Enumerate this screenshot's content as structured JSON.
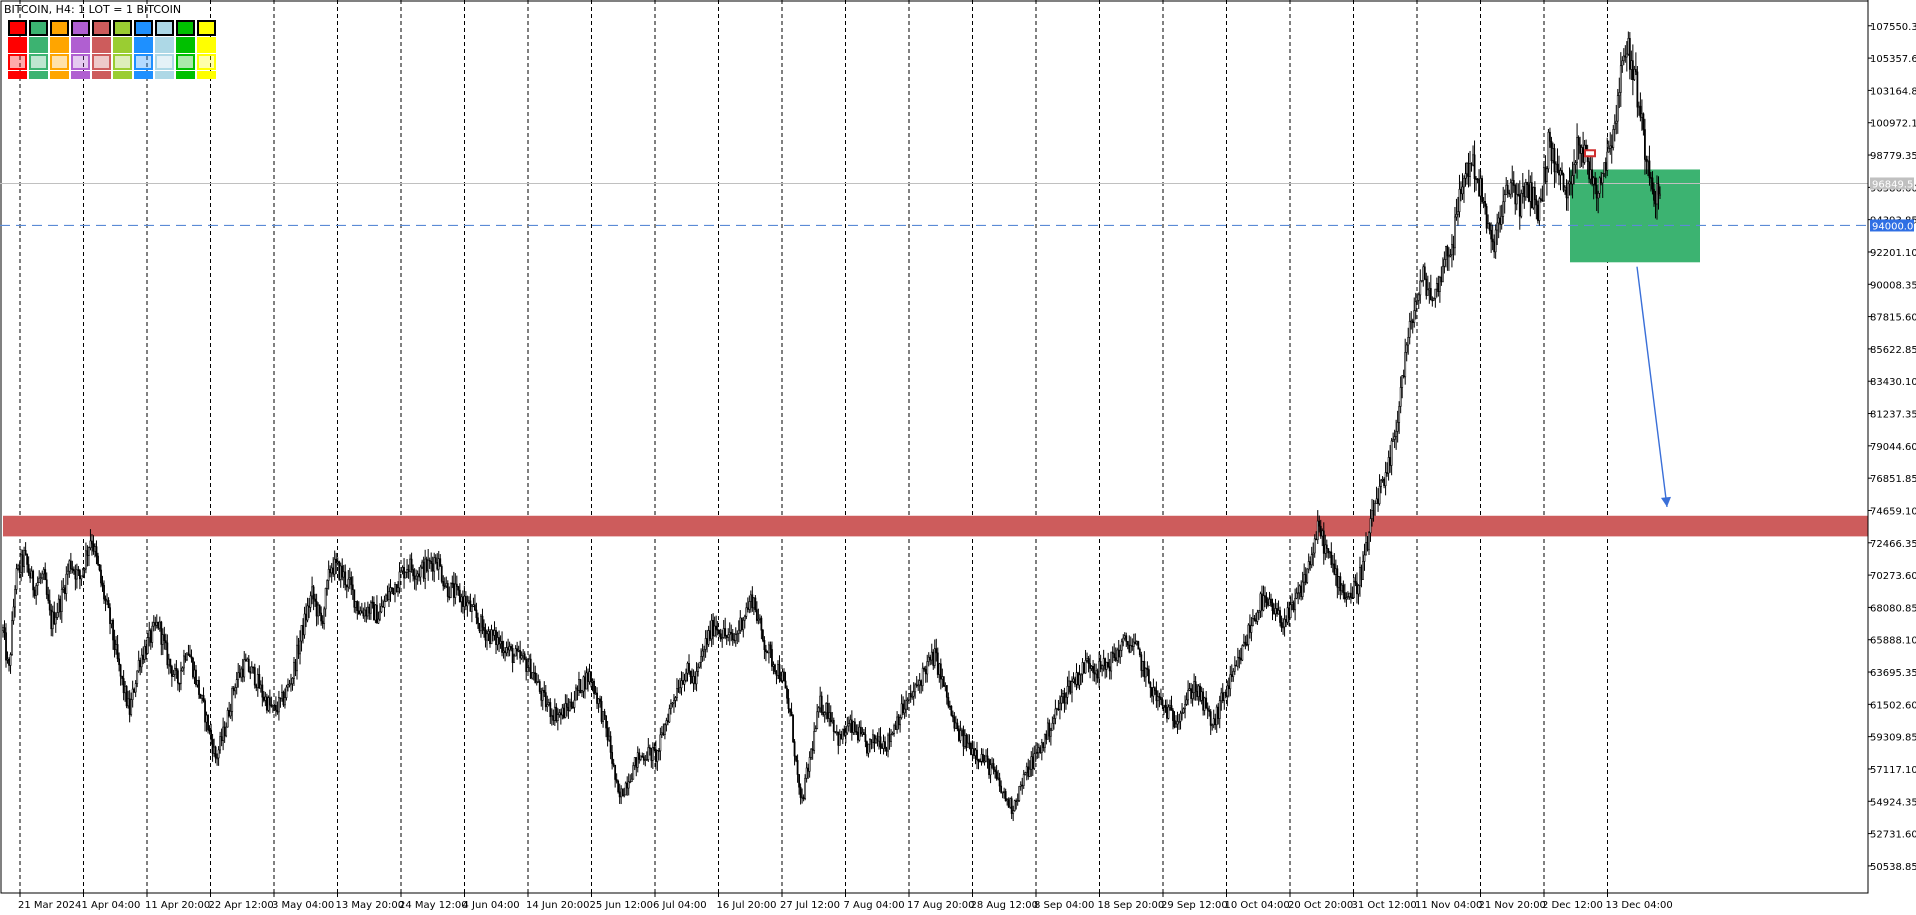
{
  "header": {
    "symbol_info": "BITCOIN, H4:  1 LOT = 1 BITCOIN"
  },
  "colors": {
    "background": "#ffffff",
    "candle": "#000000",
    "grid_vertical": "#000000",
    "support_zone": "#cd5c5c",
    "entry_zone": "#3cb371",
    "target_arrow": "#3a6fd8",
    "level_dashed": "#5b8bd6",
    "current_price_line": "#c0c0c0",
    "current_price_tag": "#c0c0c0",
    "level_tag": "#2f6fe4",
    "red_marker": "#d03030"
  },
  "palette": {
    "row1": [
      "#ff0000",
      "#3cb371",
      "#ffa500",
      "#b05fd1",
      "#cd5c5c",
      "#9acd32",
      "#1e90ff",
      "#add8e6",
      "#00c000",
      "#ffff00"
    ],
    "row2": [
      "#ff0000",
      "#3cb371",
      "#ffa500",
      "#b05fd1",
      "#cd5c5c",
      "#9acd32",
      "#1e90ff",
      "#add8e6",
      "#00c000",
      "#ffff00"
    ],
    "row3": [
      "#ff0000",
      "#3cb371",
      "#ffa500",
      "#b05fd1",
      "#cd5c5c",
      "#9acd32",
      "#1e90ff",
      "#add8e6",
      "#00c000",
      "#ffff00"
    ],
    "row4": [
      "#ff0000",
      "#3cb371",
      "#ffa500",
      "#b05fd1",
      "#cd5c5c",
      "#9acd32",
      "#1e90ff",
      "#add8e6",
      "#00c000",
      "#ffff00"
    ]
  },
  "chart_data": {
    "type": "candlestick",
    "timeframe": "H4",
    "symbol": "BITCOIN",
    "ylim": [
      48700,
      109300
    ],
    "y_ticks": [
      "107550.35",
      "105357.60",
      "103164.85",
      "100972.10",
      "98779.35",
      "96586.60",
      "94393.85",
      "92201.10",
      "90008.35",
      "87815.60",
      "85622.85",
      "83430.10",
      "81237.35",
      "79044.60",
      "76851.85",
      "74659.10",
      "72466.35",
      "70273.60",
      "68080.85",
      "65888.10",
      "63695.35",
      "61502.60",
      "59309.85",
      "57117.10",
      "54924.35",
      "52731.60",
      "50538.85"
    ],
    "x_ticks": [
      "21 Mar 2024",
      "1 Apr 04:00",
      "11 Apr 20:00",
      "22 Apr 12:00",
      "3 May 04:00",
      "13 May 20:00",
      "24 May 12:00",
      "4 Jun 04:00",
      "14 Jun 20:00",
      "25 Jun 12:00",
      "6 Jul 04:00",
      "16 Jul 20:00",
      "27 Jul 12:00",
      "7 Aug 04:00",
      "17 Aug 20:00",
      "28 Aug 12:00",
      "8 Sep 04:00",
      "18 Sep 20:00",
      "29 Sep 12:00",
      "10 Oct 04:00",
      "20 Oct 20:00",
      "31 Oct 12:00",
      "11 Nov 04:00",
      "21 Nov 20:00",
      "2 Dec 12:00",
      "13 Dec 04:00"
    ],
    "price_path": [
      [
        0,
        66500
      ],
      [
        0.6,
        63500
      ],
      [
        1.3,
        70000
      ],
      [
        2.2,
        71500
      ],
      [
        3.2,
        69500
      ],
      [
        4.2,
        70200
      ],
      [
        5.0,
        67000
      ],
      [
        6.0,
        68500
      ],
      [
        7.0,
        71200
      ],
      [
        8.0,
        70000
      ],
      [
        9.2,
        73000
      ],
      [
        10.2,
        69800
      ],
      [
        11.2,
        67000
      ],
      [
        12.2,
        63500
      ],
      [
        13.2,
        61000
      ],
      [
        14.2,
        64500
      ],
      [
        15.2,
        65800
      ],
      [
        16.2,
        67000
      ],
      [
        17.2,
        64500
      ],
      [
        18.2,
        63000
      ],
      [
        19.2,
        65500
      ],
      [
        20.2,
        63000
      ],
      [
        21.2,
        60500
      ],
      [
        22.2,
        57800
      ],
      [
        23.2,
        60000
      ],
      [
        24.2,
        63000
      ],
      [
        25.2,
        64200
      ],
      [
        26.2,
        63500
      ],
      [
        27.2,
        62000
      ],
      [
        28.2,
        61000
      ],
      [
        29.2,
        61800
      ],
      [
        30.2,
        63500
      ],
      [
        31.2,
        66500
      ],
      [
        32.2,
        69000
      ],
      [
        33.2,
        67000
      ],
      [
        34.2,
        71000
      ],
      [
        35.2,
        70500
      ],
      [
        36.2,
        69500
      ],
      [
        37.2,
        67800
      ],
      [
        38.2,
        68000
      ],
      [
        39.2,
        67500
      ],
      [
        40.2,
        69000
      ],
      [
        41.2,
        70000
      ],
      [
        42.2,
        71000
      ],
      [
        43.2,
        70500
      ],
      [
        44.2,
        70800
      ],
      [
        45.2,
        71500
      ],
      [
        46.2,
        69500
      ],
      [
        47.2,
        69000
      ],
      [
        48.2,
        68500
      ],
      [
        49.2,
        67500
      ],
      [
        50.2,
        66500
      ],
      [
        51.2,
        66000
      ],
      [
        52.2,
        65500
      ],
      [
        53.2,
        64800
      ],
      [
        54.2,
        64500
      ],
      [
        55.2,
        63800
      ],
      [
        56.2,
        62000
      ],
      [
        57.2,
        61000
      ],
      [
        58.2,
        60800
      ],
      [
        59.2,
        61500
      ],
      [
        60.2,
        62800
      ],
      [
        61.2,
        63500
      ],
      [
        62.2,
        61500
      ],
      [
        63.2,
        59000
      ],
      [
        64.2,
        55000
      ],
      [
        65.2,
        56500
      ],
      [
        66.2,
        57800
      ],
      [
        67.2,
        58200
      ],
      [
        68.2,
        58000
      ],
      [
        69.2,
        60500
      ],
      [
        70.2,
        62500
      ],
      [
        71.2,
        63800
      ],
      [
        72.2,
        63000
      ],
      [
        73.2,
        65500
      ],
      [
        74.2,
        67000
      ],
      [
        75.2,
        66200
      ],
      [
        76.2,
        65800
      ],
      [
        77.2,
        67500
      ],
      [
        78.2,
        68800
      ],
      [
        79.2,
        66000
      ],
      [
        80.2,
        64500
      ],
      [
        81.2,
        63500
      ],
      [
        82.2,
        60500
      ],
      [
        83.2,
        54500
      ],
      [
        84.2,
        58000
      ],
      [
        85.2,
        61500
      ],
      [
        86.2,
        61000
      ],
      [
        87.2,
        59000
      ],
      [
        88.2,
        60000
      ],
      [
        89.2,
        59500
      ],
      [
        90.2,
        58500
      ],
      [
        91.2,
        59300
      ],
      [
        92.2,
        58800
      ],
      [
        93.2,
        60500
      ],
      [
        94.2,
        61500
      ],
      [
        95.2,
        62500
      ],
      [
        96.2,
        64000
      ],
      [
        97.2,
        64800
      ],
      [
        98.2,
        62500
      ],
      [
        99.2,
        60000
      ],
      [
        100.2,
        59000
      ],
      [
        101.2,
        58500
      ],
      [
        102.2,
        57800
      ],
      [
        103.2,
        57000
      ],
      [
        104.2,
        55500
      ],
      [
        105.2,
        54500
      ],
      [
        106.2,
        56000
      ],
      [
        107.2,
        57500
      ],
      [
        108.2,
        58500
      ],
      [
        109.2,
        60000
      ],
      [
        110.2,
        61500
      ],
      [
        111.2,
        62800
      ],
      [
        112.2,
        63500
      ],
      [
        113.2,
        64500
      ],
      [
        114.2,
        63800
      ],
      [
        115.2,
        64200
      ],
      [
        116.2,
        65000
      ],
      [
        117.2,
        65800
      ],
      [
        118.2,
        65200
      ],
      [
        119.2,
        63500
      ],
      [
        120.2,
        62000
      ],
      [
        121.2,
        61200
      ],
      [
        122.2,
        60500
      ],
      [
        123.2,
        61500
      ],
      [
        124.2,
        62800
      ],
      [
        125.2,
        61500
      ],
      [
        126.2,
        60000
      ],
      [
        127.2,
        62000
      ],
      [
        128.2,
        63200
      ],
      [
        129.2,
        65000
      ],
      [
        130.2,
        67000
      ],
      [
        131.2,
        68500
      ],
      [
        132.2,
        68000
      ],
      [
        133.2,
        67200
      ],
      [
        134.2,
        67500
      ],
      [
        135.2,
        69000
      ],
      [
        136.2,
        71000
      ],
      [
        137.2,
        73500
      ],
      [
        138.2,
        71500
      ],
      [
        139.2,
        70000
      ],
      [
        140.2,
        68800
      ],
      [
        141.2,
        69500
      ],
      [
        142.2,
        72000
      ],
      [
        143.2,
        75500
      ],
      [
        144.2,
        76500
      ],
      [
        145.2,
        80000
      ],
      [
        146.2,
        85000
      ],
      [
        147.2,
        88500
      ],
      [
        148.2,
        90500
      ],
      [
        149.2,
        88800
      ],
      [
        150.2,
        91500
      ],
      [
        151.2,
        93000
      ],
      [
        152.2,
        97000
      ],
      [
        153.2,
        98500
      ],
      [
        154.2,
        96000
      ],
      [
        155.2,
        92500
      ],
      [
        156.2,
        94500
      ],
      [
        157.2,
        97000
      ],
      [
        158.2,
        95500
      ],
      [
        159.2,
        96500
      ],
      [
        160.2,
        95000
      ],
      [
        161.2,
        99500
      ],
      [
        162.2,
        97500
      ],
      [
        163.2,
        96000
      ],
      [
        164.2,
        100000
      ],
      [
        165.2,
        98200
      ],
      [
        166.2,
        96500
      ],
      [
        167.2,
        98500
      ],
      [
        168.2,
        101500
      ],
      [
        169.2,
        106500
      ],
      [
        170.2,
        104000
      ],
      [
        171.2,
        99500
      ],
      [
        172.2,
        96500
      ],
      [
        172.8,
        95500
      ]
    ],
    "zones": [
      {
        "name": "support_zone",
        "y_from": 72900,
        "y_to": 74300
      },
      {
        "name": "entry_zone",
        "y_from": 91500,
        "y_to": 97800
      }
    ],
    "levels": [
      {
        "name": "level_line",
        "value": 94000.0,
        "label": "94000.00"
      },
      {
        "name": "current_price",
        "value": 96849.5,
        "label": "96849.50"
      }
    ],
    "target_arrow": {
      "from_value": 91200,
      "to_value": 74900
    }
  }
}
